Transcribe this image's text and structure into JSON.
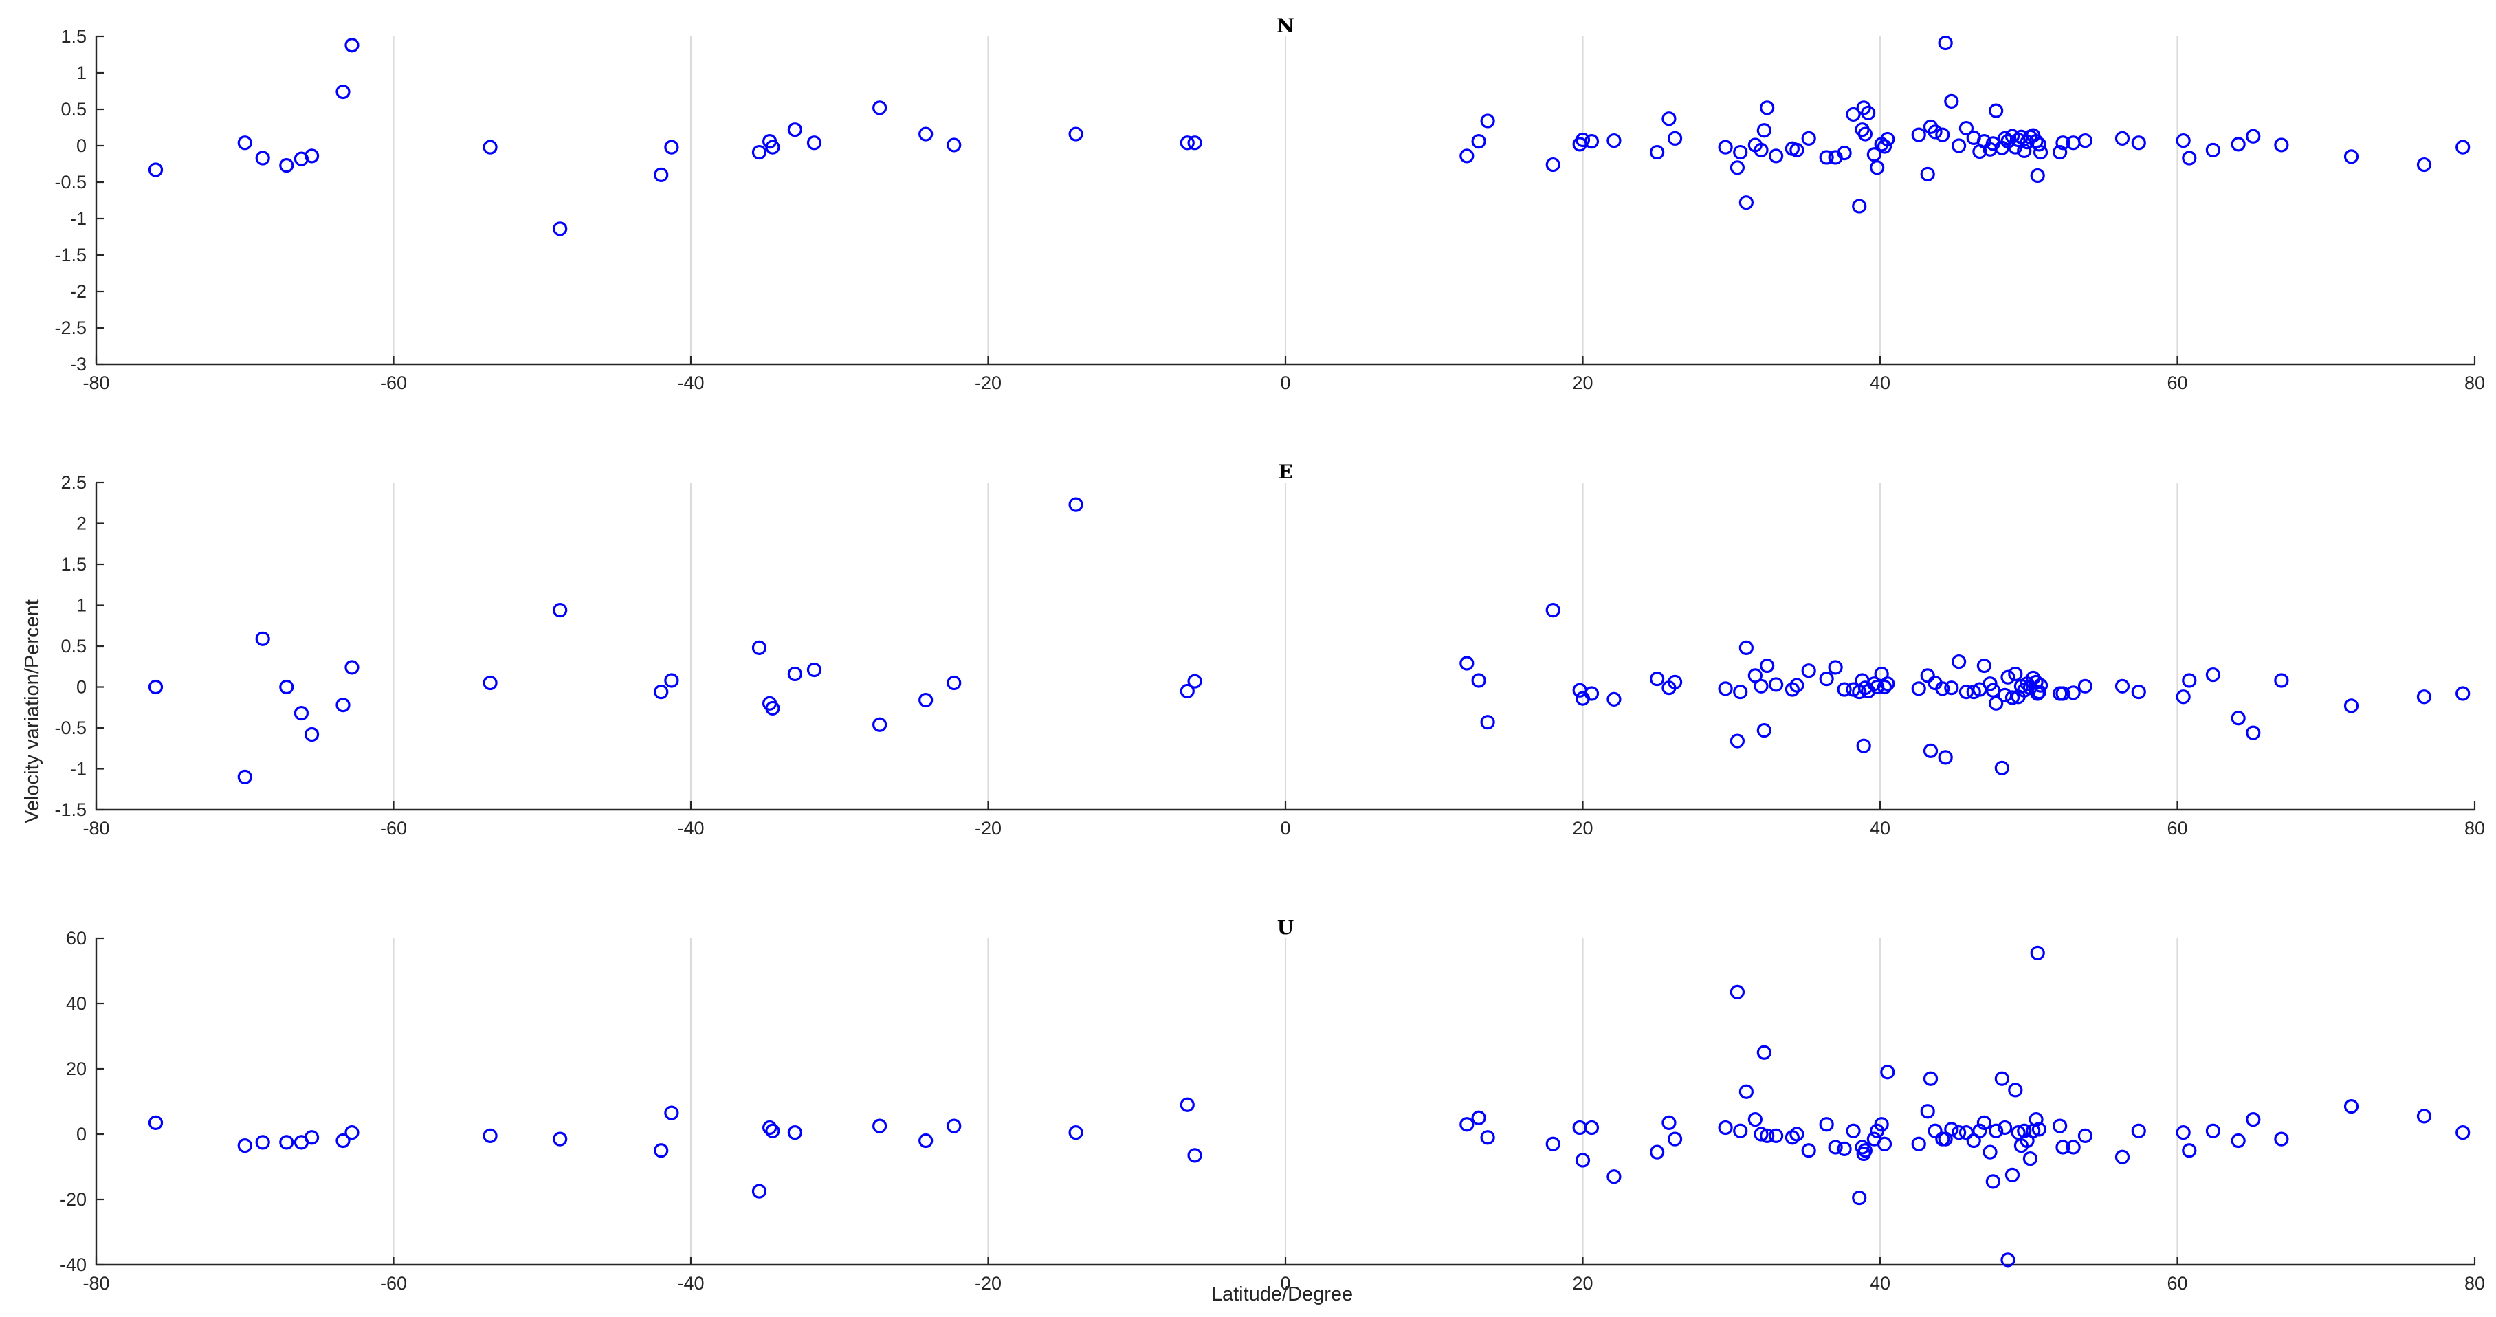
{
  "figure": {
    "ylabel": "Velocity variation/Percent",
    "xlabel": "Latitude/Degree",
    "marker_color": "#0000ff",
    "marker_shape": "open-circle"
  },
  "chart_data": [
    {
      "type": "scatter",
      "title": "N",
      "xlim": [
        -80,
        80
      ],
      "ylim": [
        -3,
        1.5
      ],
      "xticks": [
        -80,
        -60,
        -40,
        -20,
        0,
        20,
        40,
        60,
        80
      ],
      "yticks": [
        1.5,
        1,
        0.5,
        0,
        -0.5,
        -1,
        -1.5,
        -2,
        -2.5,
        -3
      ],
      "grid": "x-only",
      "series": [
        {
          "x": [
            -76,
            -70,
            -68.8,
            -67.2,
            -66.2,
            -65.5,
            -63.4,
            -62.8,
            -53.5,
            -48.8,
            -42,
            -41.3,
            -35.4,
            -34.7,
            -34.5,
            -33,
            -31.7,
            -27.3,
            -24.2,
            -22.3,
            -14.1,
            -6.6,
            -6.1,
            12.2,
            13,
            13.6,
            18,
            19.8,
            20,
            20.6,
            22.1,
            25,
            25.8,
            26.2,
            29.6,
            30.4,
            30.6,
            31,
            31.6,
            32,
            32.2,
            32.4,
            33,
            34.1,
            34.4,
            35.2,
            36.4,
            37,
            37.6,
            38.2,
            38.6,
            38.8,
            38.9,
            39,
            39.2,
            39.6,
            39.8,
            40.1,
            40.3,
            40.5,
            42.6,
            43.2,
            43.4,
            43.7,
            44.2,
            44.4,
            44.8,
            45.3,
            45.8,
            46.3,
            46.7,
            47,
            47.4,
            47.6,
            47.8,
            48.2,
            48.4,
            48.6,
            48.9,
            49.1,
            49.3,
            49.5,
            49.7,
            49.9,
            50.1,
            50.3,
            50.5,
            50.6,
            50.7,
            50.8,
            52.1,
            52.3,
            53,
            53.8,
            56.3,
            57.4,
            60.4,
            60.8,
            62.4,
            64.1,
            65.1,
            67,
            71.7,
            76.6,
            79.2
          ],
          "y": [
            -0.33,
            0.04,
            -0.17,
            -0.27,
            -0.18,
            -0.14,
            0.74,
            1.38,
            -0.02,
            -1.14,
            -0.4,
            -0.02,
            -0.09,
            0.06,
            -0.02,
            0.22,
            0.04,
            0.52,
            0.16,
            0.01,
            0.16,
            0.04,
            0.04,
            -0.14,
            0.06,
            0.34,
            -0.26,
            0.02,
            0.08,
            0.06,
            0.07,
            -0.09,
            0.37,
            0.1,
            -0.02,
            -0.3,
            -0.09,
            -0.78,
            0.01,
            -0.06,
            0.21,
            0.52,
            -0.14,
            -0.04,
            -0.06,
            0.1,
            -0.16,
            -0.16,
            -0.1,
            0.43,
            -0.83,
            0.22,
            0.52,
            0.16,
            0.45,
            -0.12,
            -0.3,
            0.02,
            -0.01,
            0.09,
            0.15,
            -0.39,
            0.26,
            0.19,
            0.15,
            1.41,
            0.61,
            0,
            0.24,
            0.11,
            -0.08,
            0.06,
            -0.05,
            0.03,
            0.48,
            -0.03,
            0.1,
            0.06,
            0.13,
            -0.02,
            0.08,
            0.12,
            -0.07,
            0.05,
            0.12,
            0.14,
            0.06,
            -0.41,
            0.02,
            -0.09,
            -0.09,
            0.04,
            0.04,
            0.07,
            0.1,
            0.04,
            0.07,
            -0.17,
            -0.06,
            0.02,
            0.13,
            0.01,
            -0.15,
            -0.26,
            -0.02
          ]
        }
      ]
    },
    {
      "type": "scatter",
      "title": "E",
      "xlim": [
        -80,
        80
      ],
      "ylim": [
        -1.5,
        2.5
      ],
      "xticks": [
        -80,
        -60,
        -40,
        -20,
        0,
        20,
        40,
        60,
        80
      ],
      "yticks": [
        2.5,
        2,
        1.5,
        1,
        0.5,
        0,
        -0.5,
        -1,
        -1.5
      ],
      "grid": "x-only",
      "series": [
        {
          "x": [
            -76,
            -70,
            -68.8,
            -67.2,
            -66.2,
            -65.5,
            -63.4,
            -62.8,
            -53.5,
            -48.8,
            -42,
            -41.3,
            -35.4,
            -34.7,
            -34.5,
            -33,
            -31.7,
            -27.3,
            -24.2,
            -22.3,
            -14.1,
            -6.6,
            -6.1,
            12.2,
            13,
            13.6,
            18,
            19.8,
            20,
            20.6,
            22.1,
            25,
            25.8,
            26.2,
            29.6,
            30.4,
            30.6,
            31,
            31.6,
            32,
            32.2,
            32.4,
            33,
            34.1,
            34.4,
            35.2,
            36.4,
            37,
            37.6,
            38.2,
            38.6,
            38.8,
            38.9,
            39,
            39.2,
            39.6,
            39.8,
            40.1,
            40.3,
            40.5,
            42.6,
            43.2,
            43.4,
            43.7,
            44.2,
            44.4,
            44.8,
            45.3,
            45.8,
            46.3,
            46.7,
            47,
            47.4,
            47.6,
            47.8,
            48.2,
            48.4,
            48.6,
            48.9,
            49.1,
            49.3,
            49.5,
            49.7,
            49.9,
            50.1,
            50.3,
            50.5,
            50.6,
            50.7,
            50.8,
            52.1,
            52.3,
            53,
            53.8,
            56.3,
            57.4,
            60.4,
            60.8,
            62.4,
            64.1,
            65.1,
            67,
            71.7,
            76.6,
            79.2
          ],
          "y": [
            0,
            -1.1,
            0.59,
            0,
            -0.32,
            -0.58,
            -0.22,
            0.24,
            0.05,
            0.94,
            -0.06,
            0.08,
            0.48,
            -0.2,
            -0.26,
            0.16,
            0.21,
            -0.46,
            -0.16,
            0.05,
            2.23,
            -0.05,
            0.07,
            0.29,
            0.08,
            -0.43,
            0.94,
            -0.04,
            -0.14,
            -0.08,
            -0.15,
            0.1,
            -0.01,
            0.06,
            -0.02,
            -0.66,
            -0.06,
            0.48,
            0.14,
            0.01,
            -0.53,
            0.26,
            0.03,
            -0.03,
            0.02,
            0.2,
            0.1,
            0.24,
            -0.03,
            -0.03,
            -0.06,
            0.08,
            -0.72,
            -0.01,
            -0.05,
            0.04,
            0,
            0.16,
            0,
            0.04,
            -0.02,
            0.14,
            -0.78,
            0.05,
            -0.02,
            -0.86,
            -0.01,
            0.31,
            -0.06,
            -0.06,
            -0.03,
            0.26,
            0.04,
            -0.04,
            -0.2,
            -0.99,
            -0.1,
            0.12,
            -0.13,
            0.16,
            -0.12,
            0.01,
            -0.04,
            0.04,
            -0.01,
            0.11,
            0.06,
            -0.08,
            -0.06,
            0.02,
            -0.08,
            -0.08,
            -0.07,
            0.01,
            0.01,
            -0.06,
            -0.12,
            0.08,
            0.15,
            -0.38,
            -0.56,
            0.08,
            -0.23,
            -0.12,
            -0.08
          ]
        }
      ]
    },
    {
      "type": "scatter",
      "title": "U",
      "xlim": [
        -80,
        80
      ],
      "ylim": [
        -40,
        60
      ],
      "xticks": [
        -80,
        -60,
        -40,
        -20,
        0,
        20,
        40,
        60,
        80
      ],
      "yticks": [
        60,
        40,
        20,
        0,
        -20,
        -40
      ],
      "grid": "x-only",
      "series": [
        {
          "x": [
            -76,
            -70,
            -68.8,
            -67.2,
            -66.2,
            -65.5,
            -63.4,
            -62.8,
            -53.5,
            -48.8,
            -42,
            -41.3,
            -35.4,
            -34.7,
            -34.5,
            -33,
            -27.3,
            -24.2,
            -22.3,
            -14.1,
            -6.6,
            -6.1,
            12.2,
            13,
            13.6,
            18,
            19.8,
            20,
            20.6,
            22.1,
            25,
            25.8,
            26.2,
            29.6,
            30.4,
            30.6,
            31,
            31.6,
            32,
            32.2,
            32.4,
            33,
            34.1,
            34.4,
            35.2,
            36.4,
            37,
            37.6,
            38.2,
            38.6,
            38.8,
            38.9,
            39,
            39.6,
            39.8,
            40.1,
            40.3,
            40.5,
            42.6,
            43.2,
            43.4,
            43.7,
            44.2,
            44.4,
            44.8,
            45.3,
            45.8,
            46.3,
            46.7,
            47,
            47.4,
            47.6,
            47.8,
            48.2,
            48.4,
            48.6,
            48.9,
            49.1,
            49.3,
            49.5,
            49.7,
            49.9,
            50.1,
            50.3,
            50.5,
            50.6,
            50.7,
            52.1,
            52.3,
            53,
            53.8,
            56.3,
            57.4,
            60.4,
            60.8,
            62.4,
            64.1,
            65.1,
            67,
            71.7,
            76.6,
            79.2
          ],
          "y": [
            3.5,
            -3.5,
            -2.5,
            -2.5,
            -2.5,
            -1,
            -2,
            0.5,
            -0.5,
            -1.5,
            -5,
            6.5,
            -17.5,
            2,
            1,
            0.5,
            2.5,
            -2,
            2.5,
            0.5,
            9,
            -6.5,
            3,
            5,
            -1,
            -3,
            2,
            -8,
            2,
            -13,
            -5.5,
            3.5,
            -1.5,
            2,
            43.5,
            1,
            13,
            4.5,
            0,
            25,
            -0.5,
            -0.5,
            -1,
            0,
            -5,
            3,
            -4,
            -4.5,
            1,
            -19.5,
            -4,
            -6,
            -5,
            -1.5,
            1,
            3,
            -3,
            19,
            -3,
            7,
            17,
            1,
            -1.5,
            -1.5,
            1.5,
            0.5,
            0.5,
            -2,
            1,
            3.5,
            -5.5,
            -14.5,
            1,
            17,
            2,
            -38.5,
            -12.5,
            13.5,
            0.5,
            -3.5,
            1,
            -2,
            -7.5,
            1,
            4.5,
            55.5,
            1.5,
            2.5,
            -4,
            -4,
            -0.5,
            -7,
            1,
            0.5,
            -5,
            1,
            -2,
            4.5,
            -1.5,
            8.5,
            5.5,
            0.5
          ]
        }
      ]
    }
  ]
}
